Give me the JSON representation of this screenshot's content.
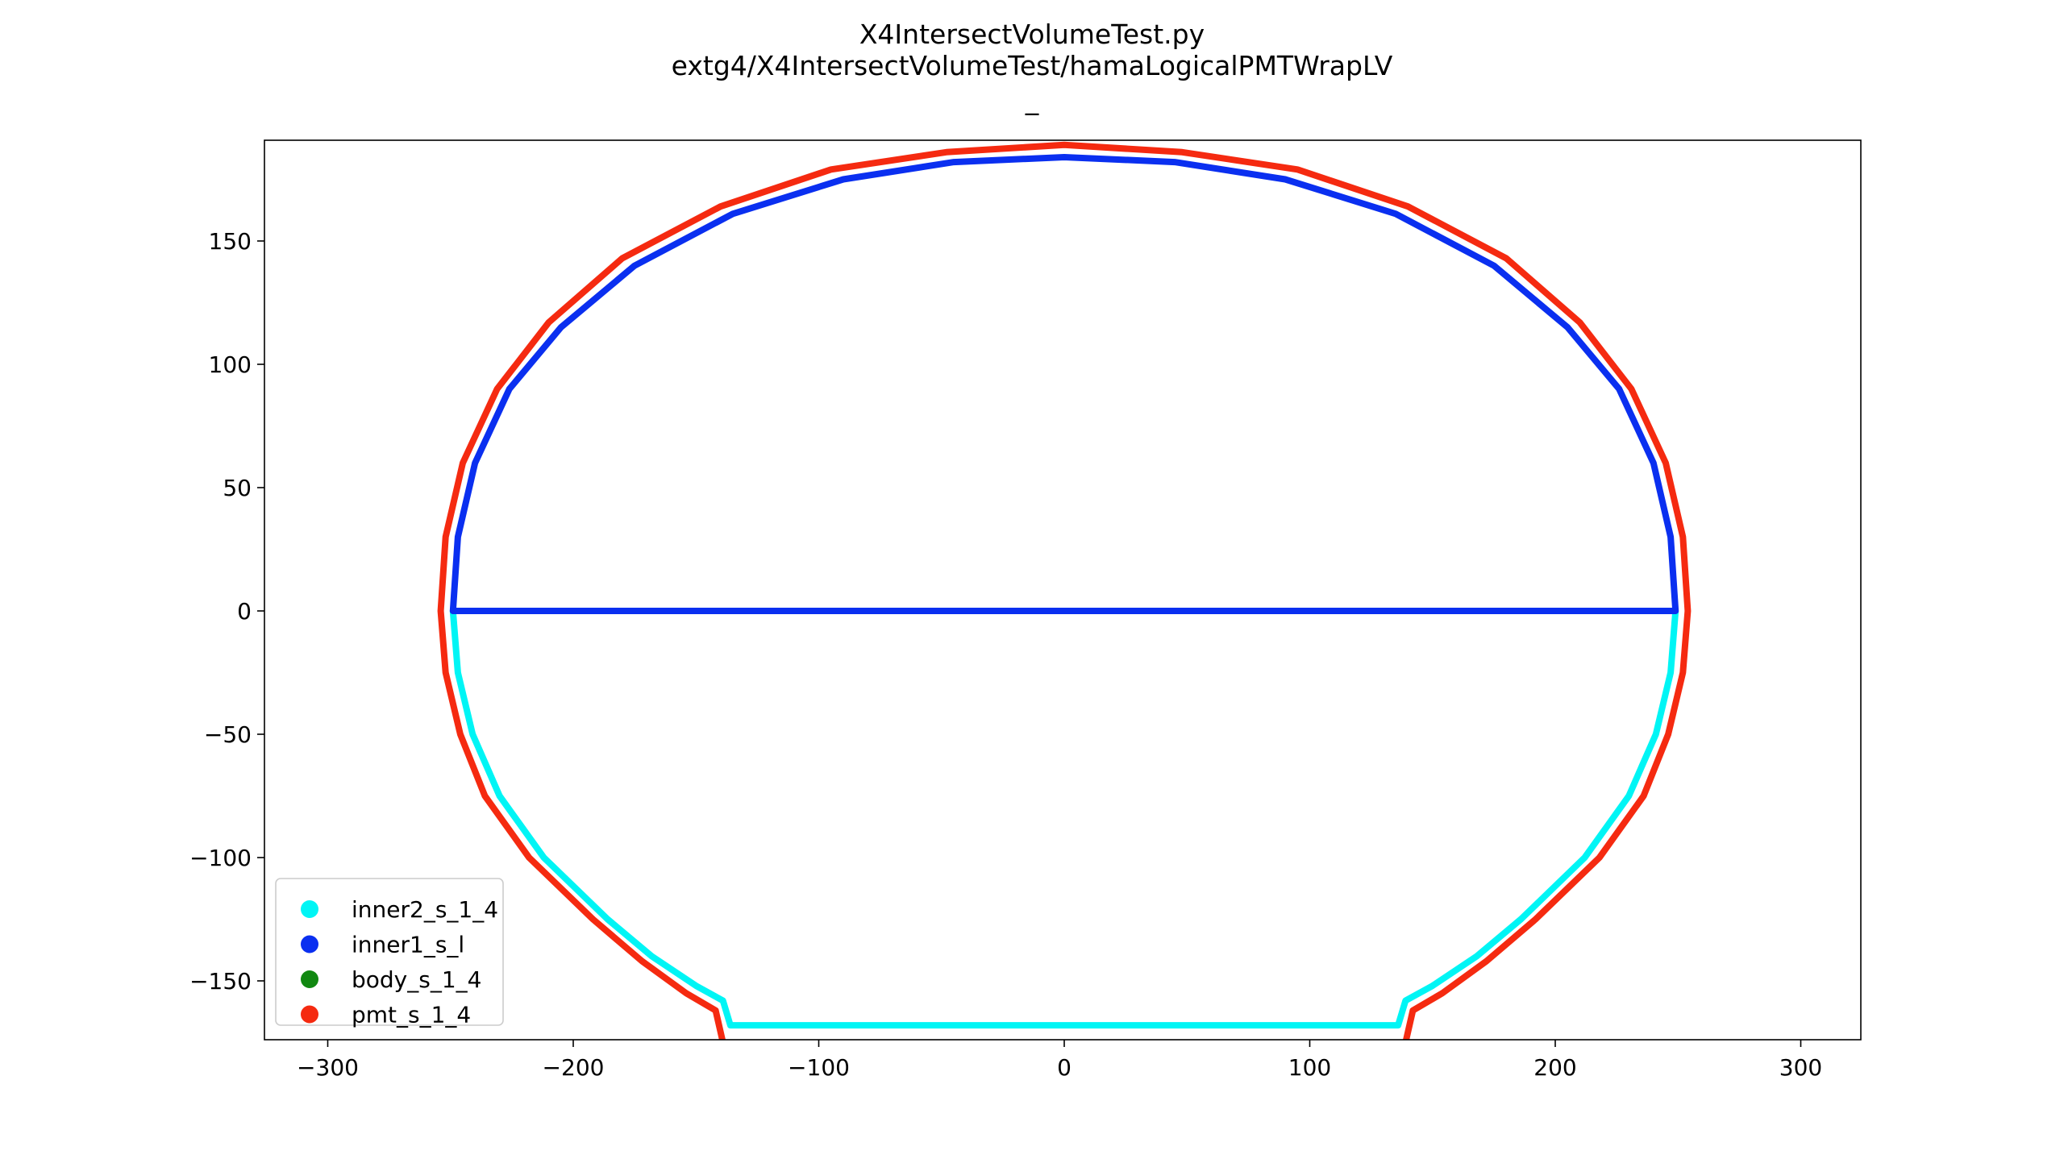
{
  "chart_data": {
    "type": "scatter",
    "title": [
      "X4IntersectVolumeTest.py",
      "extg4/X4IntersectVolumeTest/hamaLogicalPMTWrapLV",
      "_"
    ],
    "xlabel": "",
    "ylabel": "",
    "xlim": [
      -300,
      300
    ],
    "ylim": [
      -175,
      190
    ],
    "xticks": [
      -300,
      -200,
      -100,
      0,
      100,
      200,
      300
    ],
    "xtick_labels": [
      "−300",
      "−200",
      "−100",
      "0",
      "100",
      "200",
      "300"
    ],
    "yticks": [
      -150,
      -100,
      -50,
      0,
      50,
      100,
      150
    ],
    "ytick_labels": [
      "−150",
      "−100",
      "−50",
      "0",
      "50",
      "100",
      "150"
    ],
    "grid": false,
    "legend_position": "lower-left",
    "series": [
      {
        "name": "inner2_s_1_4",
        "color": "#00f5f5",
        "points": [
          [
            -249,
            0
          ],
          [
            -247,
            -25
          ],
          [
            -241,
            -50
          ],
          [
            -230,
            -75
          ],
          [
            -212,
            -100
          ],
          [
            -186,
            -125
          ],
          [
            -168,
            -140
          ],
          [
            -150,
            -152
          ],
          [
            -139,
            -158
          ],
          [
            -136,
            -168
          ],
          [
            0,
            -168
          ],
          [
            136,
            -168
          ],
          [
            139,
            -158
          ],
          [
            150,
            -152
          ],
          [
            168,
            -140
          ],
          [
            186,
            -125
          ],
          [
            212,
            -100
          ],
          [
            230,
            -75
          ],
          [
            241,
            -50
          ],
          [
            247,
            -25
          ],
          [
            249,
            0
          ]
        ]
      },
      {
        "name": "inner1_s_l",
        "color": "#0a2ff0",
        "points": [
          [
            -249,
            0
          ],
          [
            -247,
            30
          ],
          [
            -240,
            60
          ],
          [
            -226,
            90
          ],
          [
            -205,
            115
          ],
          [
            -175,
            140
          ],
          [
            -135,
            161
          ],
          [
            -90,
            175
          ],
          [
            -45,
            182
          ],
          [
            0,
            184
          ],
          [
            45,
            182
          ],
          [
            90,
            175
          ],
          [
            135,
            161
          ],
          [
            175,
            140
          ],
          [
            205,
            115
          ],
          [
            226,
            90
          ],
          [
            240,
            60
          ],
          [
            247,
            30
          ],
          [
            249,
            0
          ],
          [
            100,
            0
          ],
          [
            0,
            0
          ],
          [
            -100,
            0
          ],
          [
            -249,
            0
          ]
        ]
      },
      {
        "name": "body_s_1_4",
        "color": "#118811",
        "points": []
      },
      {
        "name": "pmt_s_1_4",
        "color": "#f52a10",
        "points": [
          [
            -254,
            0
          ],
          [
            -252,
            -25
          ],
          [
            -246,
            -50
          ],
          [
            -236,
            -75
          ],
          [
            -218,
            -100
          ],
          [
            -192,
            -125
          ],
          [
            -172,
            -142
          ],
          [
            -154,
            -155
          ],
          [
            -142,
            -162
          ],
          [
            -139,
            -175
          ],
          [
            0,
            -175
          ],
          [
            139,
            -175
          ],
          [
            142,
            -162
          ],
          [
            154,
            -155
          ],
          [
            172,
            -142
          ],
          [
            192,
            -125
          ],
          [
            218,
            -100
          ],
          [
            236,
            -75
          ],
          [
            246,
            -50
          ],
          [
            252,
            -25
          ],
          [
            254,
            0
          ],
          [
            252,
            30
          ],
          [
            245,
            60
          ],
          [
            231,
            90
          ],
          [
            210,
            117
          ],
          [
            180,
            143
          ],
          [
            140,
            164
          ],
          [
            95,
            179
          ],
          [
            48,
            186
          ],
          [
            0,
            189
          ],
          [
            -48,
            186
          ],
          [
            -95,
            179
          ],
          [
            -140,
            164
          ],
          [
            -180,
            143
          ],
          [
            -210,
            117
          ],
          [
            -231,
            90
          ],
          [
            -245,
            60
          ],
          [
            -252,
            30
          ],
          [
            -254,
            0
          ]
        ]
      }
    ]
  }
}
